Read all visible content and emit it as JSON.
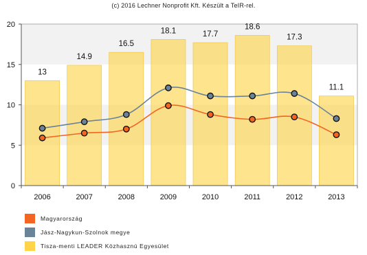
{
  "chart_data": {
    "type": "bar",
    "title": "(c) 2016 Lechner Nonprofit Kft. Készült a TeIR-rel.",
    "categories": [
      "2006",
      "2007",
      "2008",
      "2009",
      "2010",
      "2011",
      "2012",
      "2013"
    ],
    "series": [
      {
        "name": "Magyarország",
        "type": "line",
        "color": "#f26522",
        "values": [
          5.9,
          6.5,
          7.0,
          9.9,
          8.8,
          8.2,
          8.5,
          6.3
        ]
      },
      {
        "name": "Jász-Nagykun-Szolnok megye",
        "type": "line",
        "color": "#6a8398",
        "values": [
          7.1,
          7.9,
          8.8,
          12.1,
          11.1,
          11.1,
          11.4,
          8.3
        ]
      },
      {
        "name": "Tisza-menti LEADER Közhasznú Egyesület",
        "type": "bar",
        "color": "#ffd449",
        "values": [
          13,
          14.9,
          16.5,
          18.1,
          17.7,
          18.6,
          17.3,
          11.1
        ],
        "data_labels": [
          "13",
          "14.9",
          "16.5",
          "18.1",
          "17.7",
          "18.6",
          "17.3",
          "11.1"
        ]
      }
    ],
    "ylim": [
      0,
      20
    ],
    "yticks": [
      "0",
      "5",
      "10",
      "15",
      "20"
    ],
    "xlabel": "",
    "ylabel": "",
    "grid": "horizontal bands",
    "legend": "bottom-left"
  },
  "colors": {
    "band": "#f2f2f2",
    "axis": "#555555"
  }
}
